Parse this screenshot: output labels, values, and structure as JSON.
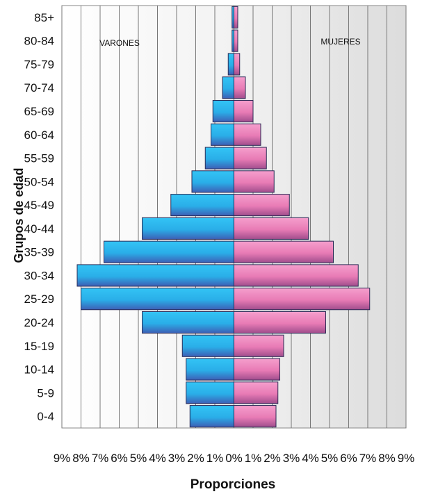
{
  "chart_data": {
    "type": "bar",
    "orientation": "horizontal",
    "layout": "population-pyramid",
    "ylabel": "Grupos de edad",
    "xlabel": "Proporciones",
    "categories": [
      "0-4",
      "5-9",
      "10-14",
      "15-19",
      "20-24",
      "25-29",
      "30-34",
      "35-39",
      "40-44",
      "45-49",
      "50-54",
      "55-59",
      "60-64",
      "65-69",
      "70-74",
      "75-79",
      "80-84",
      "85+"
    ],
    "series": [
      {
        "name": "VARONES",
        "side": "left",
        "color": "#2bb5ec",
        "values": [
          2.3,
          2.5,
          2.5,
          2.7,
          4.8,
          8.0,
          8.2,
          6.8,
          4.8,
          3.3,
          2.2,
          1.5,
          1.2,
          1.1,
          0.6,
          0.3,
          0.1,
          0.1
        ]
      },
      {
        "name": "MUJERES",
        "side": "right",
        "color": "#e97ab4",
        "values": [
          2.2,
          2.3,
          2.4,
          2.6,
          4.8,
          7.1,
          6.5,
          5.2,
          3.9,
          2.9,
          2.1,
          1.7,
          1.4,
          1.0,
          0.6,
          0.3,
          0.2,
          0.2
        ]
      }
    ],
    "xlim": [
      -9,
      9
    ],
    "xticks": [
      "9%",
      "8%",
      "7%",
      "6%",
      "5%",
      "4%",
      "3%",
      "2%",
      "1%",
      "0%",
      "1%",
      "2%",
      "3%",
      "4%",
      "5%",
      "6%",
      "7%",
      "8%",
      "9%"
    ],
    "grid": true,
    "legend": "inside-top"
  }
}
